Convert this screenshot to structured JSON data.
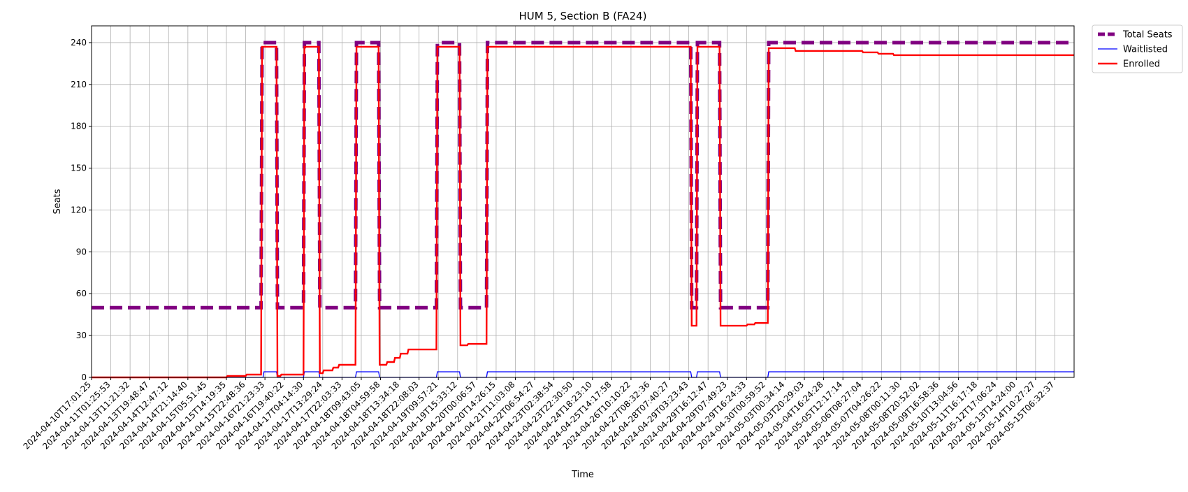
{
  "chart_data": {
    "type": "line",
    "title": "HUM 5, Section B (FA24)",
    "xlabel": "Time",
    "ylabel": "Seats",
    "ylim": [
      0,
      252
    ],
    "yticks": [
      0,
      30,
      60,
      90,
      120,
      150,
      180,
      210,
      240
    ],
    "grid": true,
    "legend_position": "outside top-right",
    "x_categories": [
      "2024-04-10T17:01:25",
      "2024-04-11T01:25:53",
      "2024-04-13T11:21:32",
      "2024-04-13T19:48:47",
      "2024-04-14T12:47:12",
      "2024-04-14T21:14:40",
      "2024-04-15T05:51:45",
      "2024-04-15T14:19:35",
      "2024-04-15T22:48:36",
      "2024-04-16T21:23:33",
      "2024-04-16T19:40:22",
      "2024-04-17T04:14:30",
      "2024-04-17T13:29:24",
      "2024-04-17T22:03:33",
      "2024-04-18T09:43:05",
      "2024-04-18T04:59:58",
      "2024-04-18T13:34:18",
      "2024-04-18T22:08:03",
      "2024-04-19T09:57:21",
      "2024-04-19T15:33:12",
      "2024-04-20T00:06:57",
      "2024-04-20T14:26:15",
      "2024-04-21T11:03:08",
      "2024-04-22T06:54:27",
      "2024-04-23T02:38:54",
      "2024-04-23T22:30:50",
      "2024-04-24T18:23:10",
      "2024-04-25T14:17:58",
      "2024-04-26T10:10:22",
      "2024-04-27T08:32:36",
      "2024-04-28T07:40:27",
      "2024-04-29T03:23:43",
      "2024-04-29T16:12:47",
      "2024-04-29T07:49:23",
      "2024-04-29T16:24:33",
      "2024-04-30T00:59:52",
      "2024-05-03T00:34:14",
      "2024-05-03T20:29:03",
      "2024-05-04T16:24:28",
      "2024-05-05T12:17:14",
      "2024-05-06T08:27:04",
      "2024-05-07T04:26:22",
      "2024-05-08T00:11:30",
      "2024-05-08T20:52:02",
      "2024-05-09T16:58:36",
      "2024-05-10T13:04:56",
      "2024-05-11T16:17:18",
      "2024-05-12T17:06:24",
      "2024-05-13T14:24:00",
      "2024-05-14T10:27:27",
      "2024-05-15T06:32:37"
    ],
    "x_range": [
      0,
      51
    ],
    "series": [
      {
        "name": "Total Seats",
        "color": "#800080",
        "style": "dashed",
        "steps": [
          [
            0,
            50
          ],
          [
            8.8,
            50
          ],
          [
            8.85,
            240
          ],
          [
            9.6,
            240
          ],
          [
            9.65,
            50
          ],
          [
            11.0,
            50
          ],
          [
            11.05,
            240
          ],
          [
            11.8,
            240
          ],
          [
            11.85,
            50
          ],
          [
            13.7,
            50
          ],
          [
            13.75,
            240
          ],
          [
            14.9,
            240
          ],
          [
            14.95,
            50
          ],
          [
            17.9,
            50
          ],
          [
            17.95,
            240
          ],
          [
            19.1,
            240
          ],
          [
            19.15,
            50
          ],
          [
            20.5,
            50
          ],
          [
            20.55,
            240
          ],
          [
            31.1,
            240
          ],
          [
            31.15,
            50
          ],
          [
            31.4,
            50
          ],
          [
            31.45,
            240
          ],
          [
            32.6,
            240
          ],
          [
            32.65,
            50
          ],
          [
            35.1,
            50
          ],
          [
            35.15,
            240
          ],
          [
            51,
            240
          ]
        ]
      },
      {
        "name": "Waitlisted",
        "color": "#0000ff",
        "style": "solid",
        "steps": [
          [
            0,
            0
          ],
          [
            8.9,
            0
          ],
          [
            8.95,
            4
          ],
          [
            9.6,
            4
          ],
          [
            9.65,
            0
          ],
          [
            11.0,
            0
          ],
          [
            11.05,
            4
          ],
          [
            11.8,
            4
          ],
          [
            11.85,
            0
          ],
          [
            13.7,
            0
          ],
          [
            13.75,
            4
          ],
          [
            14.9,
            4
          ],
          [
            14.95,
            0
          ],
          [
            17.9,
            0
          ],
          [
            17.95,
            4
          ],
          [
            19.1,
            4
          ],
          [
            19.15,
            0
          ],
          [
            20.5,
            0
          ],
          [
            20.55,
            4
          ],
          [
            31.1,
            4
          ],
          [
            31.15,
            0
          ],
          [
            31.4,
            0
          ],
          [
            31.45,
            4
          ],
          [
            32.6,
            4
          ],
          [
            32.65,
            0
          ],
          [
            35.1,
            0
          ],
          [
            35.15,
            4
          ],
          [
            51,
            4
          ]
        ]
      },
      {
        "name": "Enrolled",
        "color": "#ff0000",
        "style": "solid",
        "steps": [
          [
            0,
            0
          ],
          [
            7.0,
            0
          ],
          [
            7.05,
            1
          ],
          [
            8.0,
            1
          ],
          [
            8.05,
            2
          ],
          [
            8.8,
            2
          ],
          [
            8.85,
            237
          ],
          [
            9.6,
            237
          ],
          [
            9.65,
            1
          ],
          [
            9.8,
            1
          ],
          [
            9.85,
            2
          ],
          [
            11.0,
            2
          ],
          [
            11.05,
            237
          ],
          [
            11.8,
            237
          ],
          [
            11.85,
            3
          ],
          [
            12.0,
            3
          ],
          [
            12.05,
            5
          ],
          [
            12.5,
            5
          ],
          [
            12.55,
            7
          ],
          [
            12.8,
            7
          ],
          [
            12.85,
            9
          ],
          [
            13.7,
            9
          ],
          [
            13.75,
            237
          ],
          [
            14.9,
            237
          ],
          [
            14.95,
            9
          ],
          [
            15.3,
            9
          ],
          [
            15.35,
            11
          ],
          [
            15.7,
            11
          ],
          [
            15.75,
            14
          ],
          [
            16.0,
            14
          ],
          [
            16.05,
            17
          ],
          [
            16.4,
            17
          ],
          [
            16.45,
            20
          ],
          [
            17.9,
            20
          ],
          [
            17.95,
            237
          ],
          [
            19.1,
            237
          ],
          [
            19.15,
            23
          ],
          [
            19.5,
            23
          ],
          [
            19.55,
            24
          ],
          [
            20.5,
            24
          ],
          [
            20.55,
            237
          ],
          [
            31.1,
            237
          ],
          [
            31.15,
            37
          ],
          [
            31.4,
            37
          ],
          [
            31.45,
            237
          ],
          [
            32.6,
            237
          ],
          [
            32.65,
            37
          ],
          [
            34.0,
            37
          ],
          [
            34.05,
            38
          ],
          [
            34.4,
            38
          ],
          [
            34.45,
            39
          ],
          [
            35.1,
            39
          ],
          [
            35.15,
            236
          ],
          [
            36.5,
            236
          ],
          [
            36.55,
            234
          ],
          [
            40.0,
            234
          ],
          [
            40.05,
            233
          ],
          [
            40.8,
            233
          ],
          [
            40.85,
            232
          ],
          [
            41.6,
            232
          ],
          [
            41.65,
            231
          ],
          [
            51,
            231
          ]
        ]
      }
    ]
  }
}
